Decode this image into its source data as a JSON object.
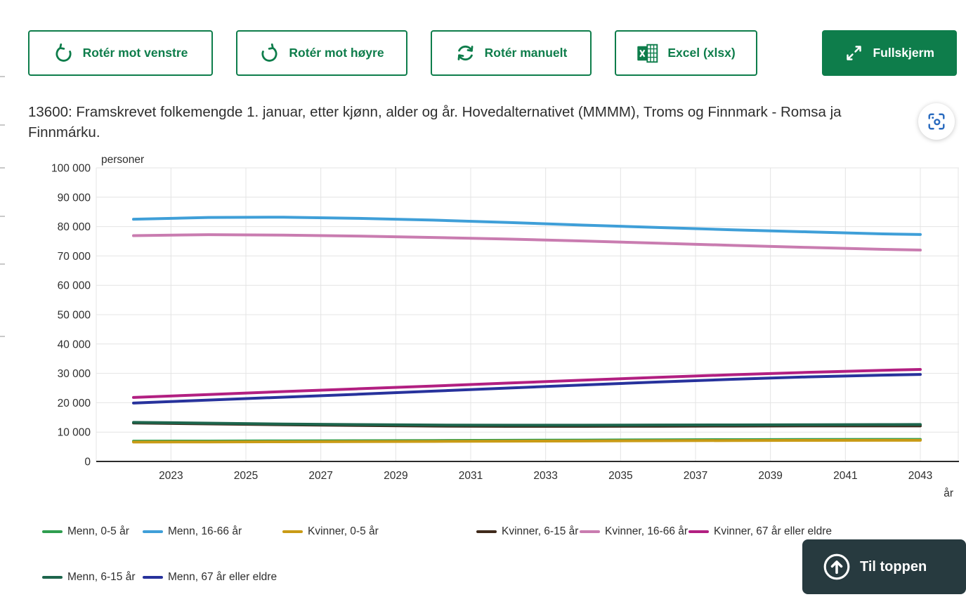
{
  "toolbar": {
    "buttons": [
      {
        "label": "Rotér mot venstre",
        "icon": "rotate-left"
      },
      {
        "label": "Rotér mot høyre",
        "icon": "rotate-right"
      },
      {
        "label": "Rotér manuelt",
        "icon": "rotate-manual"
      },
      {
        "label": "Excel (xlsx)",
        "icon": "excel"
      },
      {
        "label": "Fullskjerm",
        "icon": "fullscreen"
      }
    ],
    "accent_color": "#0e7d4b"
  },
  "title": "13600: Framskrevet folkemengde 1. januar, etter kjønn, alder og år. Hovedalternativet (MMMM), Troms og Finnmark - Romsa ja Finnmárku.",
  "back_to_top": {
    "label": "Til toppen"
  },
  "chart_data": {
    "type": "line",
    "ylabel": "personer",
    "xlabel": "år",
    "ylim": [
      0,
      100000
    ],
    "xlim": [
      2022,
      2043
    ],
    "grid": true,
    "legend_position": "bottom",
    "yticks": [
      0,
      10000,
      20000,
      30000,
      40000,
      50000,
      60000,
      70000,
      80000,
      90000,
      100000
    ],
    "ytick_labels": [
      "0",
      "10 000",
      "20 000",
      "30 000",
      "40 000",
      "50 000",
      "60 000",
      "70 000",
      "80 000",
      "90 000",
      "100 000"
    ],
    "xticks": [
      2023,
      2025,
      2027,
      2029,
      2031,
      2033,
      2035,
      2037,
      2039,
      2041,
      2043
    ],
    "x": [
      2022,
      2024,
      2026,
      2028,
      2030,
      2032,
      2034,
      2036,
      2038,
      2040,
      2042,
      2043
    ],
    "series": [
      {
        "name": "Menn, 0-5 år",
        "color": "#2f9e4f",
        "values": [
          6900,
          6950,
          7000,
          7050,
          7120,
          7200,
          7280,
          7350,
          7420,
          7470,
          7500,
          7520
        ]
      },
      {
        "name": "Menn, 16-66 år",
        "color": "#3f9fd8",
        "values": [
          82500,
          83100,
          83200,
          82800,
          82200,
          81400,
          80500,
          79700,
          78900,
          78200,
          77500,
          77300
        ]
      },
      {
        "name": "Kvinner, 0-5 år",
        "color": "#c99b16",
        "values": [
          6600,
          6650,
          6700,
          6750,
          6820,
          6900,
          6980,
          7050,
          7120,
          7170,
          7200,
          7220
        ]
      },
      {
        "name": "Kvinner, 6-15 år",
        "color": "#3f2a1b",
        "values": [
          13100,
          12800,
          12500,
          12250,
          12050,
          11950,
          11950,
          12000,
          12050,
          12100,
          12100,
          12100
        ]
      },
      {
        "name": "Kvinner, 16-66 år",
        "color": "#c97cb0",
        "values": [
          76900,
          77250,
          77100,
          76750,
          76300,
          75750,
          75100,
          74350,
          73600,
          72900,
          72250,
          72000
        ]
      },
      {
        "name": "Kvinner, 67 år eller eldre",
        "color": "#b21f81",
        "values": [
          21800,
          22800,
          23800,
          24750,
          25700,
          26700,
          27700,
          28650,
          29550,
          30350,
          31050,
          31350
        ]
      },
      {
        "name": "Menn, 6-15 år",
        "color": "#1d654c",
        "values": [
          13300,
          13050,
          12750,
          12550,
          12400,
          12350,
          12350,
          12400,
          12450,
          12500,
          12550,
          12600
        ]
      },
      {
        "name": "Menn, 67 år eller eldre",
        "color": "#27329c",
        "values": [
          19900,
          20900,
          21900,
          22900,
          23950,
          25000,
          26050,
          27050,
          28000,
          28800,
          29400,
          29650
        ]
      }
    ]
  }
}
